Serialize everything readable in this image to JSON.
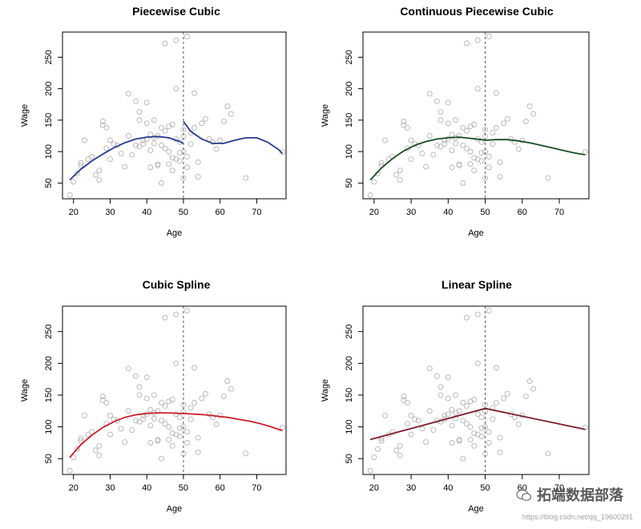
{
  "chart_data": [
    {
      "type": "scatter",
      "title": "Piecewise Cubic",
      "xlabel": "Age",
      "ylabel": "Wage",
      "xlim": [
        17,
        78
      ],
      "ylim": [
        25,
        290
      ],
      "xticks": [
        20,
        30,
        40,
        50,
        60,
        70
      ],
      "yticks": [
        50,
        100,
        150,
        200,
        250
      ],
      "cut": 50,
      "curve_color": "#2a3a8c",
      "series": [
        {
          "name": "fit_left",
          "x": [
            19,
            22,
            25,
            28,
            31,
            34,
            37,
            40,
            43,
            46,
            49,
            50
          ],
          "y": [
            55,
            72,
            85,
            96,
            106,
            114,
            120,
            123,
            124,
            122,
            116,
            113
          ]
        },
        {
          "name": "fit_right",
          "x": [
            50,
            52,
            55,
            58,
            61,
            64,
            67,
            70,
            73,
            76,
            77
          ],
          "y": [
            148,
            132,
            120,
            113,
            113,
            118,
            122,
            122,
            115,
            103,
            97
          ]
        }
      ]
    },
    {
      "type": "scatter",
      "title": "Continuous Piecewise Cubic",
      "xlabel": "Age",
      "ylabel": "Wage",
      "xlim": [
        17,
        78
      ],
      "ylim": [
        25,
        290
      ],
      "xticks": [
        20,
        30,
        40,
        50,
        60,
        70
      ],
      "yticks": [
        50,
        100,
        150,
        200,
        250
      ],
      "cut": 50,
      "curve_color": "#1a4d24",
      "series": [
        {
          "name": "fit",
          "x": [
            19,
            22,
            25,
            28,
            31,
            34,
            37,
            40,
            43,
            46,
            49,
            50,
            53,
            56,
            59,
            62,
            65,
            68,
            71,
            74,
            77
          ],
          "y": [
            55,
            74,
            89,
            101,
            110,
            116,
            120,
            122,
            123,
            121,
            119,
            118,
            119,
            119,
            117,
            114,
            110,
            106,
            102,
            98,
            95
          ]
        }
      ]
    },
    {
      "type": "scatter",
      "title": "Cubic Spline",
      "xlabel": "Age",
      "ylabel": "Wage",
      "xlim": [
        17,
        78
      ],
      "ylim": [
        25,
        290
      ],
      "xticks": [
        20,
        30,
        40,
        50,
        60,
        70
      ],
      "yticks": [
        50,
        100,
        150,
        200,
        250
      ],
      "cut": 50,
      "curve_color": "#c8202c",
      "series": [
        {
          "name": "fit",
          "x": [
            19,
            22,
            25,
            28,
            31,
            34,
            37,
            40,
            43,
            46,
            49,
            50,
            53,
            56,
            59,
            62,
            65,
            68,
            71,
            74,
            77
          ],
          "y": [
            52,
            72,
            87,
            99,
            108,
            115,
            119,
            121,
            122,
            122,
            121,
            121,
            120,
            119,
            117,
            115,
            112,
            109,
            105,
            100,
            94
          ]
        }
      ]
    },
    {
      "type": "scatter",
      "title": "Linear Spline",
      "xlabel": "Age",
      "ylabel": "Wage",
      "xlim": [
        17,
        78
      ],
      "ylim": [
        25,
        290
      ],
      "xticks": [
        20,
        30,
        40,
        50,
        60,
        70
      ],
      "yticks": [
        50,
        100,
        150,
        200,
        250
      ],
      "cut": 50,
      "curve_color": "#7a1e2a",
      "series": [
        {
          "name": "fit",
          "x": [
            19,
            50,
            77
          ],
          "y": [
            80,
            129,
            96
          ]
        }
      ]
    }
  ],
  "scatter_points": {
    "x": [
      19,
      20,
      21,
      22,
      22,
      23,
      24,
      25,
      26,
      27,
      27,
      28,
      28,
      29,
      29,
      30,
      30,
      31,
      32,
      33,
      34,
      35,
      35,
      36,
      37,
      37,
      38,
      38,
      38,
      39,
      39,
      40,
      40,
      40,
      41,
      41,
      41,
      42,
      42,
      42,
      43,
      43,
      43,
      44,
      44,
      44,
      45,
      45,
      45,
      46,
      46,
      46,
      47,
      47,
      47,
      48,
      48,
      48,
      48,
      49,
      49,
      49,
      50,
      50,
      50,
      50,
      51,
      51,
      51,
      52,
      52,
      53,
      53,
      54,
      54,
      55,
      56,
      57,
      58,
      59,
      60,
      61,
      62,
      63,
      67,
      77
    ],
    "y": [
      31,
      52,
      65,
      78,
      82,
      118,
      88,
      92,
      63,
      55,
      70,
      142,
      148,
      138,
      105,
      118,
      88,
      112,
      110,
      97,
      76,
      192,
      125,
      95,
      110,
      180,
      108,
      150,
      163,
      112,
      118,
      178,
      145,
      120,
      127,
      102,
      75,
      150,
      122,
      113,
      80,
      125,
      78,
      50,
      138,
      110,
      272,
      133,
      105,
      140,
      80,
      100,
      70,
      143,
      90,
      277,
      200,
      120,
      88,
      85,
      98,
      115,
      124,
      100,
      135,
      58,
      283,
      75,
      92,
      112,
      130,
      193,
      138,
      60,
      83,
      145,
      152,
      120,
      115,
      104,
      118,
      148,
      172,
      160,
      58,
      99
    ]
  },
  "watermark": {
    "brand": "拓端数据部落",
    "url": "https://blog.csdn.net/qq_19600291"
  }
}
